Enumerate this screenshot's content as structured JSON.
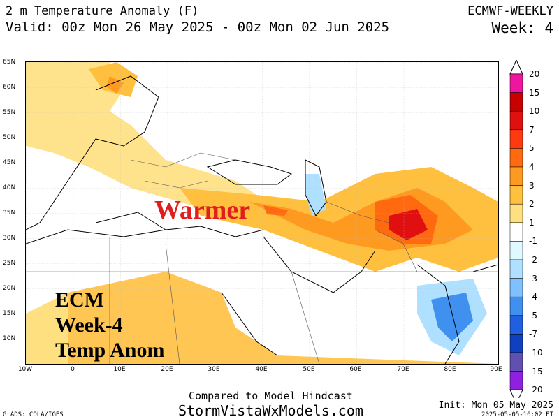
{
  "header": {
    "title": "2 m Temperature Anomaly (F)",
    "valid": "Valid: 00z Mon 26 May 2025 - 00z Mon 02 Jun 2025",
    "model": "ECMWF-WEEKLY",
    "week": "Week: 4"
  },
  "map": {
    "lat_labels": [
      "65N",
      "60N",
      "55N",
      "50N",
      "45N",
      "40N",
      "35N",
      "30N",
      "25N",
      "20N",
      "15N",
      "10N"
    ],
    "lon_labels": [
      "10W",
      "0",
      "10E",
      "20E",
      "30E",
      "40E",
      "50E",
      "60E",
      "70E",
      "80E",
      "90E"
    ],
    "overlay_warmer": "Warmer",
    "overlay_lines": [
      "ECM",
      "Week-4",
      "Temp Anom"
    ]
  },
  "colorbar": {
    "labels": [
      "20",
      "15",
      "10",
      "7",
      "5",
      "4",
      "3",
      "2",
      "1",
      "-1",
      "-2",
      "-3",
      "-4",
      "-5",
      "-7",
      "-10",
      "-15",
      "-20"
    ],
    "colors": [
      "#f015a0",
      "#c80000",
      "#e01010",
      "#ff3a10",
      "#ff6a10",
      "#ff9a20",
      "#ffc040",
      "#ffe080",
      "#ffffff",
      "#e0f8ff",
      "#b0e0ff",
      "#80c0ff",
      "#4090f0",
      "#2060e0",
      "#1040c0",
      "#6050b0",
      "#9020e0"
    ]
  },
  "footer": {
    "compared": "Compared to Model Hindcast",
    "site": "StormVistaWxModels.com",
    "init": "Init: Mon 05 May 2025",
    "stamp": "2025-05-05-16:02 ET",
    "credit": "GrADS: COLA/IGES"
  }
}
